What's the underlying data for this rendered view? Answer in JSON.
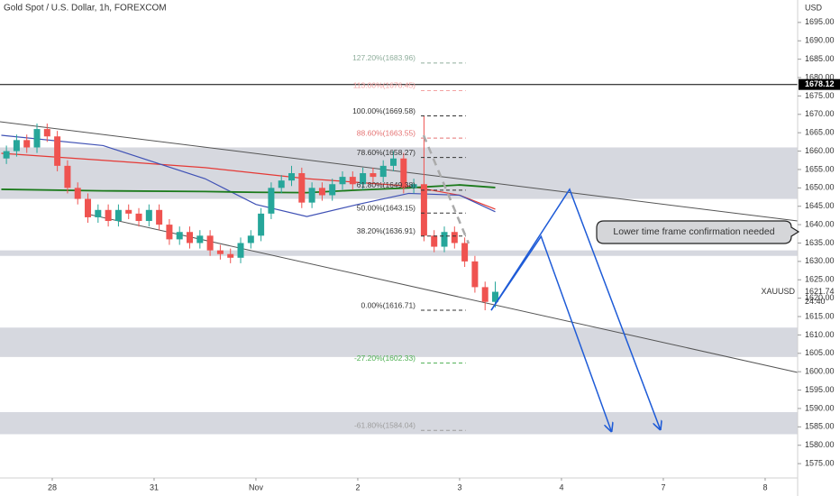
{
  "chart_data": {
    "type": "candlestick",
    "title": "Gold Spot / U.S. Dollar, 1h, FOREXCOM",
    "currency": "USD",
    "symbol": "XAUUSD",
    "countdown": "24:40",
    "up_color": "#26a69a",
    "down_color": "#ef5350",
    "xlim": [
      -0.513,
      7.319
    ],
    "ylim": [
      1571.1,
      1701.1
    ],
    "xticks": [
      {
        "value": 0,
        "label": "28"
      },
      {
        "value": 1,
        "label": "31"
      },
      {
        "value": 2,
        "label": "Nov"
      },
      {
        "value": 3,
        "label": "2"
      },
      {
        "value": 4,
        "label": "3"
      },
      {
        "value": 5,
        "label": "4"
      },
      {
        "value": 6,
        "label": "7"
      },
      {
        "value": 7,
        "label": "8"
      }
    ],
    "yticks": [
      {
        "value": 1575,
        "label": "1575.00"
      },
      {
        "value": 1580,
        "label": "1580.00"
      },
      {
        "value": 1585,
        "label": "1585.00"
      },
      {
        "value": 1590,
        "label": "1590.00"
      },
      {
        "value": 1595,
        "label": "1595.00"
      },
      {
        "value": 1600,
        "label": "1600.00"
      },
      {
        "value": 1605,
        "label": "1605.00"
      },
      {
        "value": 1610,
        "label": "1610.00"
      },
      {
        "value": 1615,
        "label": "1615.00"
      },
      {
        "value": 1620,
        "label": "1620.00"
      },
      {
        "value": 1625,
        "label": "1625.00"
      },
      {
        "value": 1630,
        "label": "1630.00"
      },
      {
        "value": 1635,
        "label": "1635.00"
      },
      {
        "value": 1640,
        "label": "1640.00"
      },
      {
        "value": 1645,
        "label": "1645.00"
      },
      {
        "value": 1650,
        "label": "1650.00"
      },
      {
        "value": 1655,
        "label": "1655.00"
      },
      {
        "value": 1660,
        "label": "1660.00"
      },
      {
        "value": 1665,
        "label": "1665.00"
      },
      {
        "value": 1670,
        "label": "1670.00"
      },
      {
        "value": 1675,
        "label": "1675.00"
      },
      {
        "value": 1680,
        "label": "1680.00"
      },
      {
        "value": 1685,
        "label": "1685.00"
      },
      {
        "value": 1690,
        "label": "1690.00"
      },
      {
        "value": 1695,
        "label": "1695.00"
      }
    ],
    "x": [
      -0.45,
      -0.35,
      -0.25,
      -0.15,
      -0.05,
      0.05,
      0.15,
      0.25,
      0.35,
      0.45,
      0.55,
      0.65,
      0.75,
      0.85,
      0.95,
      1.05,
      1.15,
      1.25,
      1.35,
      1.45,
      1.55,
      1.65,
      1.75,
      1.85,
      1.95,
      2.05,
      2.15,
      2.25,
      2.35,
      2.45,
      2.55,
      2.65,
      2.75,
      2.85,
      2.95,
      3.05,
      3.15,
      3.25,
      3.35,
      3.45,
      3.55,
      3.65,
      3.75,
      3.85,
      3.95,
      4.05,
      4.15,
      4.25,
      4.35
    ],
    "open": [
      1658,
      1660,
      1663,
      1661,
      1666,
      1664,
      1656,
      1650,
      1647,
      1642,
      1644,
      1641,
      1644,
      1643,
      1641,
      1644,
      1640,
      1636,
      1638,
      1635,
      1637,
      1633,
      1632,
      1631,
      1635,
      1637,
      1643,
      1650,
      1652,
      1654,
      1646,
      1650,
      1648,
      1651,
      1653,
      1651,
      1654,
      1653,
      1656,
      1658,
      1650,
      1651,
      1637,
      1634,
      1638,
      1635,
      1630,
      1623,
      1619
    ],
    "high": [
      1661.5,
      1664.5,
      1664.5,
      1667.5,
      1667.5,
      1665.5,
      1657.5,
      1651.5,
      1648.5,
      1645.5,
      1645.5,
      1645.5,
      1645.5,
      1644.5,
      1645.5,
      1645.5,
      1641.5,
      1639.5,
      1639.5,
      1638.5,
      1638.5,
      1634.5,
      1633.5,
      1636.5,
      1638.5,
      1644.5,
      1651.5,
      1653.5,
      1656,
      1655.5,
      1651.5,
      1651.5,
      1652.5,
      1654.5,
      1654.5,
      1655.5,
      1655.5,
      1657.5,
      1660,
      1659.5,
      1652.5,
      1669.58,
      1638.5,
      1639.5,
      1639.5,
      1636.5,
      1631.5,
      1624.5,
      1624.5
    ],
    "low": [
      1656.5,
      1658.5,
      1659.5,
      1659.5,
      1662.5,
      1654.5,
      1648.5,
      1645.5,
      1640.5,
      1640.5,
      1639.5,
      1639.5,
      1641.5,
      1639.5,
      1639.5,
      1638.5,
      1634.5,
      1634.5,
      1633.5,
      1633.5,
      1631.5,
      1630.5,
      1629.5,
      1629.5,
      1633.5,
      1635.5,
      1641.5,
      1648.5,
      1650.5,
      1644.5,
      1644.5,
      1646.5,
      1646.5,
      1649.5,
      1649.5,
      1649.5,
      1651.5,
      1651.5,
      1654.5,
      1648.5,
      1648.5,
      1635.5,
      1632.5,
      1632.5,
      1633.5,
      1628.5,
      1621.5,
      1616.71,
      1617.5
    ],
    "close": [
      1660,
      1663,
      1661,
      1666,
      1664,
      1656,
      1650,
      1647,
      1642,
      1644,
      1641,
      1644,
      1643,
      1641,
      1644,
      1640,
      1636,
      1638,
      1635,
      1637,
      1633,
      1632,
      1631,
      1635,
      1637,
      1643,
      1650,
      1652,
      1654,
      1646,
      1650,
      1648,
      1651,
      1653,
      1651,
      1654,
      1653,
      1656,
      1658,
      1650,
      1651,
      1637,
      1634,
      1638,
      1635,
      1630,
      1623,
      1619,
      1621.74
    ],
    "moving_averages": {
      "x": [
        -0.5,
        0.5,
        1.5,
        2.0,
        2.5,
        3.0,
        3.5,
        4.0,
        4.35
      ],
      "series": [
        {
          "color": "#e53935",
          "values": [
            1659.4,
            1657.5,
            1655.5,
            1654.0,
            1652.5,
            1651.5,
            1650.5,
            1648,
            1644.2
          ]
        },
        {
          "color": "#3f51b5",
          "values": [
            1664.3,
            1661.5,
            1652.5,
            1645.5,
            1642.2,
            1645.5,
            1648.5,
            1648.0,
            1643.5
          ]
        },
        {
          "color": "#1b7a1b",
          "values": [
            1649.6,
            1649.2,
            1649.0,
            1648.8,
            1648.7,
            1649.4,
            1650.0,
            1650.8,
            1650.1
          ]
        }
      ]
    },
    "zones": [
      [
        1647,
        1661
      ],
      [
        1631.5,
        1633
      ],
      [
        1604,
        1612
      ],
      [
        1583,
        1589
      ]
    ],
    "fib_x": [
      3.62,
      4.06
    ],
    "fib_levels": [
      {
        "label": "127.20%(1683.96)",
        "value": 1683.96,
        "color": "#8fae9c"
      },
      {
        "label": "113.00%(1676.45)",
        "value": 1676.45,
        "color": "#f4a3a3"
      },
      {
        "label": "100.00%(1669.58)",
        "value": 1669.58,
        "color": "#333333"
      },
      {
        "label": "88.60%(1663.55)",
        "value": 1663.55,
        "color": "#e57373"
      },
      {
        "label": "78.60%(1658.27)",
        "value": 1658.27,
        "color": "#333333"
      },
      {
        "label": "61.80%(1649.38)",
        "value": 1649.38,
        "color": "#333333"
      },
      {
        "label": "50.00%(1643.15)",
        "value": 1643.15,
        "color": "#333333"
      },
      {
        "label": "38.20%(1636.91)",
        "value": 1636.91,
        "color": "#333333"
      },
      {
        "label": "0.00%(1616.71)",
        "value": 1616.71,
        "color": "#333333"
      },
      {
        "label": "-27.20%(1602.33)",
        "value": 1602.33,
        "color": "#4caf50"
      },
      {
        "label": "-61.80%(1584.04)",
        "value": 1584.04,
        "color": "#9e9e9e"
      }
    ],
    "trendlines": [
      {
        "x": [
          -0.513,
          7.319
        ],
        "y": [
          1668.0,
          1641.0
        ]
      },
      {
        "x": [
          0.327,
          7.319
        ],
        "y": [
          1643.0,
          1599.8
        ]
      }
    ],
    "projections": [
      {
        "x": [
          4.31,
          4.8,
          5.49
        ],
        "y": [
          1616.71,
          1636.8,
          1583.8
        ]
      },
      {
        "x": [
          4.31,
          5.08,
          5.97
        ],
        "y": [
          1616.71,
          1649.6,
          1584.3
        ]
      }
    ],
    "price_line": 1678.12,
    "last_price": 1621.74,
    "annotation": "Lower time frame confirmation needed"
  }
}
